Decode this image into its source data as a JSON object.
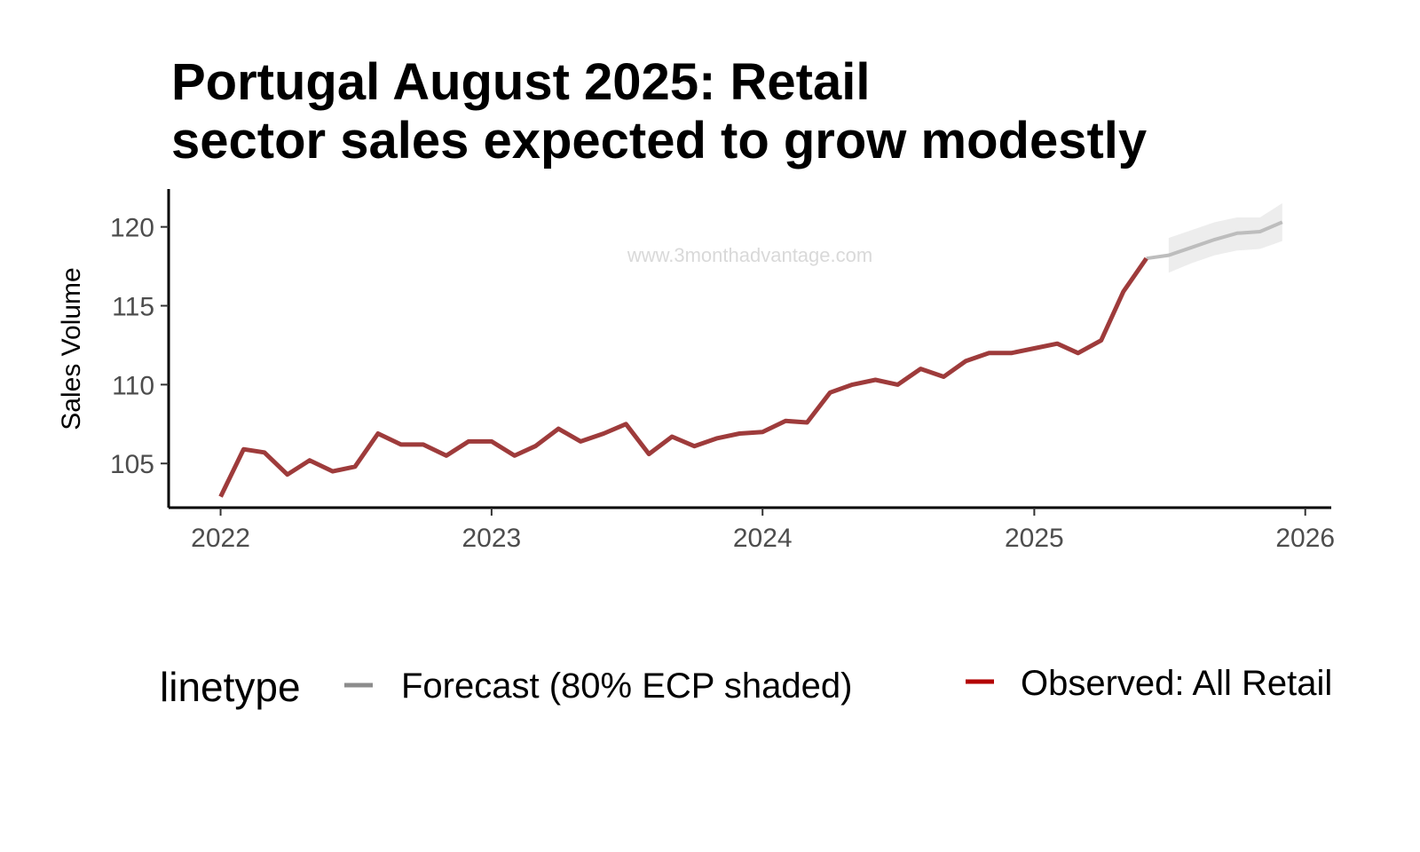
{
  "chart_data": {
    "type": "line",
    "title_lines": [
      "Portugal August 2025: Retail",
      "sector sales expected to grow modestly"
    ],
    "xlabel": "",
    "ylabel": "Sales Volume",
    "xlim": [
      "2021-10-23",
      "2026-02-05"
    ],
    "ylim": [
      102.2,
      122.4
    ],
    "x_ticks": [
      "2022",
      "2023",
      "2024",
      "2025",
      "2026"
    ],
    "y_ticks": [
      "105",
      "110",
      "115",
      "120"
    ],
    "grid": false,
    "watermark": "www.3monthadvantage.com",
    "colors": {
      "observed": "#9e3b3b",
      "forecast": "#bdbdbd",
      "band": "#ededed",
      "legend_observed": "#b30000",
      "legend_forecast": "#8c8c8c"
    },
    "legend": {
      "title": "linetype",
      "position": "bottom"
    },
    "series": [
      {
        "name": "Observed: All Retail",
        "x": [
          "2022-01",
          "2022-02",
          "2022-03",
          "2022-04",
          "2022-05",
          "2022-06",
          "2022-07",
          "2022-08",
          "2022-09",
          "2022-10",
          "2022-11",
          "2022-12",
          "2023-01",
          "2023-02",
          "2023-03",
          "2023-04",
          "2023-05",
          "2023-06",
          "2023-07",
          "2023-08",
          "2023-09",
          "2023-10",
          "2023-11",
          "2023-12",
          "2024-01",
          "2024-02",
          "2024-03",
          "2024-04",
          "2024-05",
          "2024-06",
          "2024-07",
          "2024-08",
          "2024-09",
          "2024-10",
          "2024-11",
          "2024-12",
          "2025-01",
          "2025-02",
          "2025-03",
          "2025-04",
          "2025-05",
          "2025-06"
        ],
        "values": [
          102.9,
          105.9,
          105.7,
          104.3,
          105.2,
          104.5,
          104.8,
          106.9,
          106.2,
          106.2,
          105.5,
          106.4,
          106.4,
          105.5,
          106.1,
          107.2,
          106.4,
          106.9,
          107.5,
          105.6,
          106.7,
          106.1,
          106.6,
          106.9,
          107.0,
          107.7,
          107.6,
          109.5,
          110.0,
          110.3,
          110.0,
          111.0,
          110.5,
          111.5,
          112.0,
          112.0,
          112.3,
          112.6,
          112.0,
          112.8,
          115.9,
          118.0
        ]
      },
      {
        "name": "Forecast (80% ECP shaded)",
        "x": [
          "2025-06",
          "2025-07",
          "2025-08",
          "2025-09",
          "2025-10",
          "2025-11",
          "2025-12"
        ],
        "values": [
          118.0,
          118.2,
          118.7,
          119.2,
          119.6,
          119.7,
          120.3
        ],
        "band_x": [
          "2025-07",
          "2025-08",
          "2025-09",
          "2025-10",
          "2025-11",
          "2025-12"
        ],
        "band_lower": [
          117.1,
          117.7,
          118.2,
          118.5,
          118.6,
          119.1
        ],
        "band_upper": [
          119.3,
          119.8,
          120.3,
          120.6,
          120.6,
          121.5
        ]
      }
    ]
  }
}
